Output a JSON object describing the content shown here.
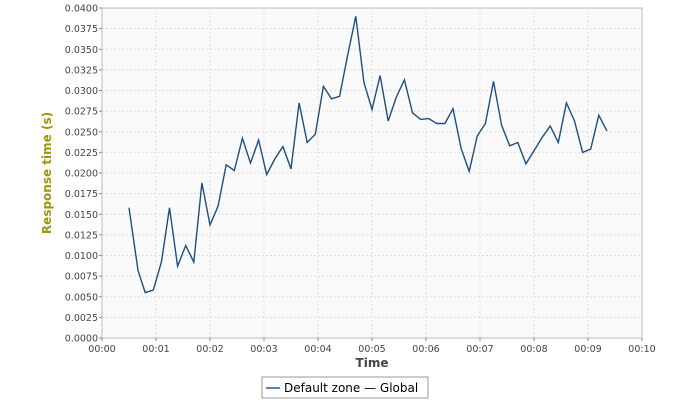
{
  "chart_data": {
    "type": "line",
    "xlabel": "Time",
    "ylabel": "Response time (s)",
    "xlim": [
      0,
      600
    ],
    "ylim": [
      0,
      0.04
    ],
    "x_ticks": [
      0,
      60,
      120,
      180,
      240,
      300,
      360,
      420,
      480,
      540,
      600
    ],
    "x_tick_labels": [
      "00:00",
      "00:01",
      "00:02",
      "00:03",
      "00:04",
      "00:05",
      "00:06",
      "00:07",
      "00:08",
      "00:09",
      "00:10"
    ],
    "y_ticks": [
      0,
      0.0025,
      0.005,
      0.0075,
      0.01,
      0.0125,
      0.015,
      0.0175,
      0.02,
      0.0225,
      0.025,
      0.0275,
      0.03,
      0.0325,
      0.035,
      0.0375,
      0.04
    ],
    "y_tick_labels": [
      "0.0000",
      "0.0025",
      "0.0050",
      "0.0075",
      "0.0100",
      "0.0125",
      "0.0150",
      "0.0175",
      "0.0200",
      "0.0225",
      "0.0250",
      "0.0275",
      "0.0300",
      "0.0325",
      "0.0350",
      "0.0375",
      "0.0400"
    ],
    "grid": true,
    "legend_position": "bottom",
    "legend_text": "Default zone — Global",
    "ylabel_color": "#999900",
    "series": [
      {
        "color": "#1a4f8a",
        "points": [
          [
            30,
            0.0158
          ],
          [
            40,
            0.0082
          ],
          [
            48,
            0.0055
          ],
          [
            57,
            0.0058
          ],
          [
            66,
            0.0092
          ],
          [
            75,
            0.0158
          ],
          [
            84,
            0.0087
          ],
          [
            93,
            0.0112
          ],
          [
            102,
            0.0092
          ],
          [
            111,
            0.0188
          ],
          [
            120,
            0.0137
          ],
          [
            129,
            0.016
          ],
          [
            138,
            0.021
          ],
          [
            147,
            0.0203
          ],
          [
            156,
            0.0242
          ],
          [
            165,
            0.0212
          ],
          [
            174,
            0.024
          ],
          [
            183,
            0.0198
          ],
          [
            192,
            0.0217
          ],
          [
            201,
            0.0232
          ],
          [
            210,
            0.0205
          ],
          [
            219,
            0.0285
          ],
          [
            228,
            0.0237
          ],
          [
            237,
            0.0247
          ],
          [
            246,
            0.0305
          ],
          [
            255,
            0.029
          ],
          [
            264,
            0.0293
          ],
          [
            273,
            0.0343
          ],
          [
            282,
            0.039
          ],
          [
            291,
            0.031
          ],
          [
            300,
            0.0277
          ],
          [
            309,
            0.0318
          ],
          [
            318,
            0.0263
          ],
          [
            327,
            0.0292
          ],
          [
            336,
            0.0313
          ],
          [
            345,
            0.0273
          ],
          [
            354,
            0.0265
          ],
          [
            363,
            0.0266
          ],
          [
            372,
            0.026
          ],
          [
            381,
            0.026
          ],
          [
            390,
            0.0278
          ],
          [
            399,
            0.023
          ],
          [
            408,
            0.0202
          ],
          [
            417,
            0.0245
          ],
          [
            426,
            0.026
          ],
          [
            435,
            0.0311
          ],
          [
            444,
            0.0258
          ],
          [
            453,
            0.0233
          ],
          [
            462,
            0.0237
          ],
          [
            471,
            0.0211
          ],
          [
            480,
            0.0227
          ],
          [
            489,
            0.0243
          ],
          [
            498,
            0.0257
          ],
          [
            507,
            0.0237
          ],
          [
            516,
            0.0285
          ],
          [
            525,
            0.0263
          ],
          [
            534,
            0.0225
          ],
          [
            543,
            0.0229
          ],
          [
            552,
            0.027
          ],
          [
            561,
            0.0251
          ]
        ]
      }
    ]
  }
}
